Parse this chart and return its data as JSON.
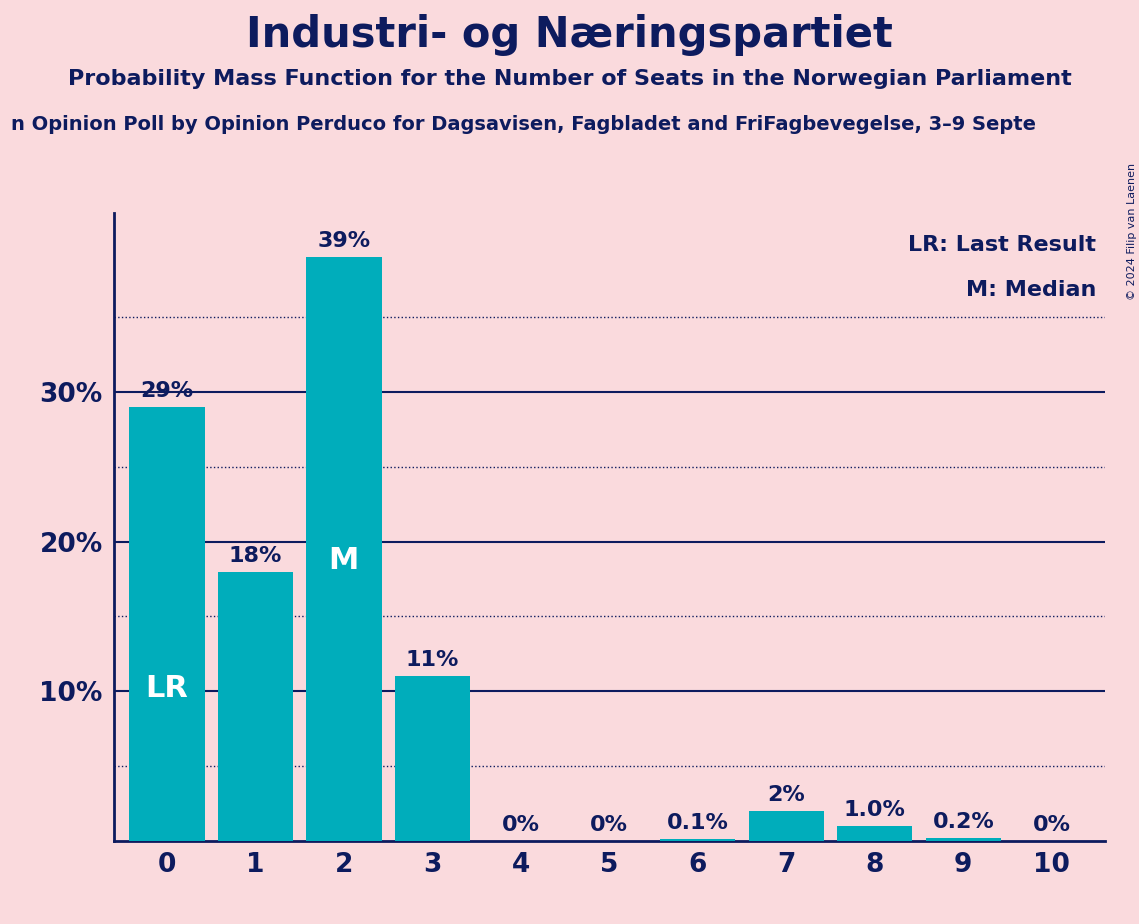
{
  "title": "Industri- og Næringspartiet",
  "subtitle": "Probability Mass Function for the Number of Seats in the Norwegian Parliament",
  "source": "n Opinion Poll by Opinion Perduco for Dagsavisen, Fagbladet and FriFagbevegelse, 3–9 Septe",
  "copyright": "© 2024 Filip van Laenen",
  "categories": [
    0,
    1,
    2,
    3,
    4,
    5,
    6,
    7,
    8,
    9,
    10
  ],
  "values": [
    0.29,
    0.18,
    0.39,
    0.11,
    0.0,
    0.0,
    0.001,
    0.02,
    0.01,
    0.002,
    0.0
  ],
  "bar_labels": [
    "29%",
    "18%",
    "39%",
    "11%",
    "0%",
    "0%",
    "0.1%",
    "2%",
    "1.0%",
    "0.2%",
    "0%"
  ],
  "bar_color": "#00ADBB",
  "background_color": "#FADADD",
  "text_color": "#0D1B5E",
  "label_lr": "LR",
  "label_m": "M",
  "lr_bar": 0,
  "m_bar": 2,
  "legend_lr": "LR: Last Result",
  "legend_m": "M: Median",
  "yticks": [
    0.1,
    0.2,
    0.3
  ],
  "ytick_labels": [
    "10%",
    "20%",
    "30%"
  ],
  "solid_lines": [
    0.1,
    0.2,
    0.3
  ],
  "dotted_lines": [
    0.05,
    0.15,
    0.25,
    0.35
  ],
  "ylim": [
    0,
    0.42
  ]
}
